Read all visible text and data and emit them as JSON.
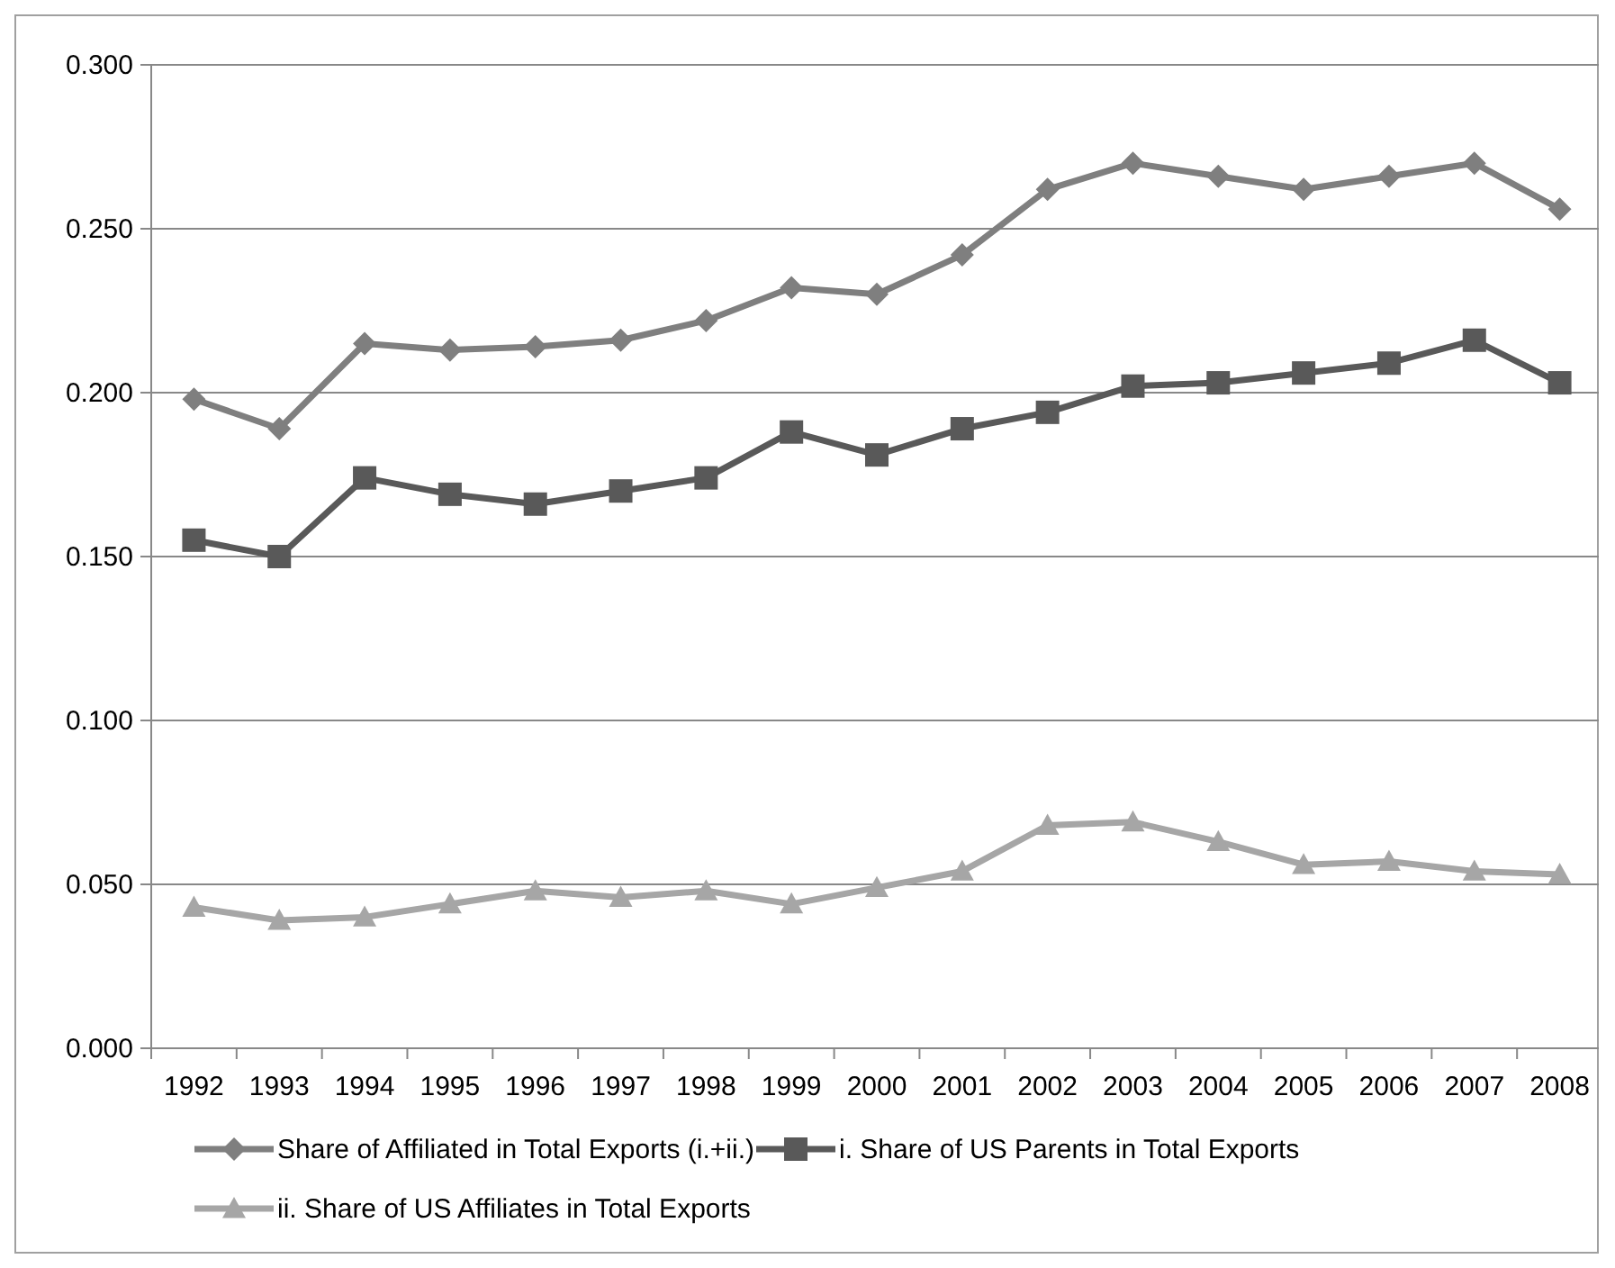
{
  "chart_data": {
    "type": "line",
    "categories": [
      "1992",
      "1993",
      "1994",
      "1995",
      "1996",
      "1997",
      "1998",
      "1999",
      "2000",
      "2001",
      "2002",
      "2003",
      "2004",
      "2005",
      "2006",
      "2007",
      "2008"
    ],
    "series": [
      {
        "name": "Share of Affiliated in Total Exports (i.+ii.)",
        "color": "#7f7f7f",
        "marker": "diamond",
        "values": [
          0.198,
          0.189,
          0.215,
          0.213,
          0.214,
          0.216,
          0.222,
          0.232,
          0.23,
          0.242,
          0.262,
          0.27,
          0.266,
          0.262,
          0.266,
          0.27,
          0.256
        ]
      },
      {
        "name": "i. Share of US Parents in Total Exports",
        "color": "#595959",
        "marker": "square",
        "values": [
          0.155,
          0.15,
          0.174,
          0.169,
          0.166,
          0.17,
          0.174,
          0.188,
          0.181,
          0.189,
          0.194,
          0.202,
          0.203,
          0.206,
          0.209,
          0.216,
          0.203
        ]
      },
      {
        "name": "ii. Share of US Affiliates in Total Exports",
        "color": "#a6a6a6",
        "marker": "triangle",
        "values": [
          0.043,
          0.039,
          0.04,
          0.044,
          0.048,
          0.046,
          0.048,
          0.044,
          0.049,
          0.054,
          0.068,
          0.069,
          0.063,
          0.056,
          0.057,
          0.054,
          0.053
        ]
      }
    ],
    "ylim": [
      0,
      0.3
    ],
    "yticks": [
      {
        "value": 0,
        "label": "0.000"
      },
      {
        "value": 0.05,
        "label": "0.050"
      },
      {
        "value": 0.1,
        "label": "0.100"
      },
      {
        "value": 0.15,
        "label": "0.150"
      },
      {
        "value": 0.2,
        "label": "0.200"
      },
      {
        "value": 0.25,
        "label": "0.250"
      },
      {
        "value": 0.3,
        "label": "0.300"
      }
    ],
    "grid": "y",
    "legend": "bottom",
    "line_style": "solid"
  }
}
